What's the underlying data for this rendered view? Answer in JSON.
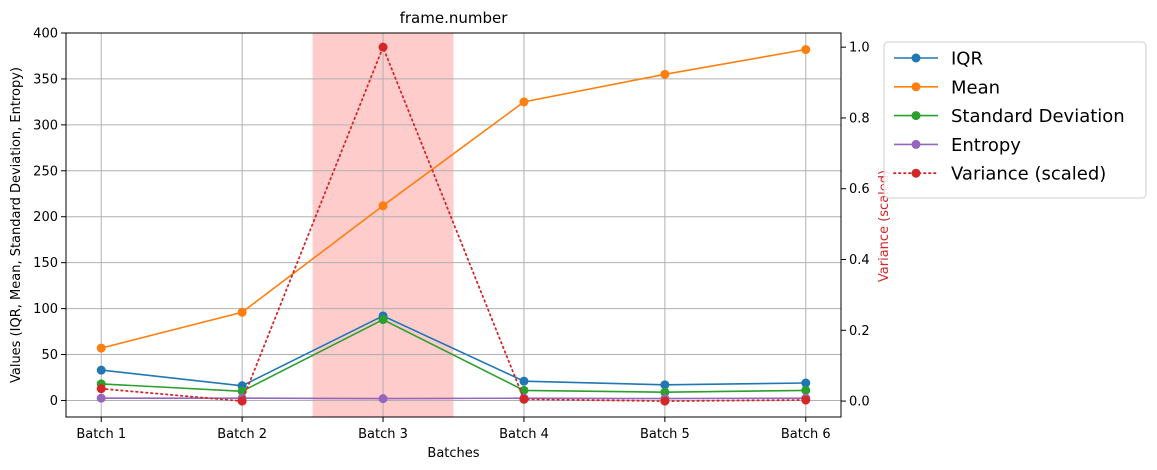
{
  "chart_data": {
    "type": "line",
    "title": "frame.number",
    "xlabel": "Batches",
    "ylabel": "Values (IQR, Mean, Standard Deviation, Entropy)",
    "y2label": "Variance (scaled)",
    "categories": [
      "Batch 1",
      "Batch 2",
      "Batch 3",
      "Batch 4",
      "Batch 5",
      "Batch 6"
    ],
    "ylim": [
      -18,
      400
    ],
    "y2lim": [
      -0.045,
      1.04
    ],
    "yticks": [
      0,
      50,
      100,
      150,
      200,
      250,
      300,
      350,
      400
    ],
    "y2ticks": [
      0.0,
      0.2,
      0.4,
      0.6,
      0.8,
      1.0
    ],
    "grid": true,
    "legend_position": "outside-right",
    "highlight": {
      "from": 1.5,
      "to": 2.5,
      "color": "#ffcccc"
    },
    "series": [
      {
        "name": "IQR",
        "axis": "left",
        "color": "#1f77b4",
        "style": "solid",
        "values": [
          33,
          16,
          92,
          21,
          17,
          19
        ]
      },
      {
        "name": "Mean",
        "axis": "left",
        "color": "#ff7f0e",
        "style": "solid",
        "values": [
          57,
          96,
          212,
          325,
          355,
          382
        ]
      },
      {
        "name": "Standard Deviation",
        "axis": "left",
        "color": "#2ca02c",
        "style": "solid",
        "values": [
          18,
          10,
          88,
          11,
          9,
          11
        ]
      },
      {
        "name": "Entropy",
        "axis": "left",
        "color": "#9467bd",
        "style": "solid",
        "values": [
          2.5,
          2.5,
          2,
          2.5,
          2,
          2.5
        ]
      },
      {
        "name": "Variance (scaled)",
        "axis": "right",
        "color": "#d62728",
        "style": "dotted",
        "values": [
          0.035,
          0.0,
          1.0,
          0.005,
          0.0,
          0.003
        ]
      }
    ]
  }
}
